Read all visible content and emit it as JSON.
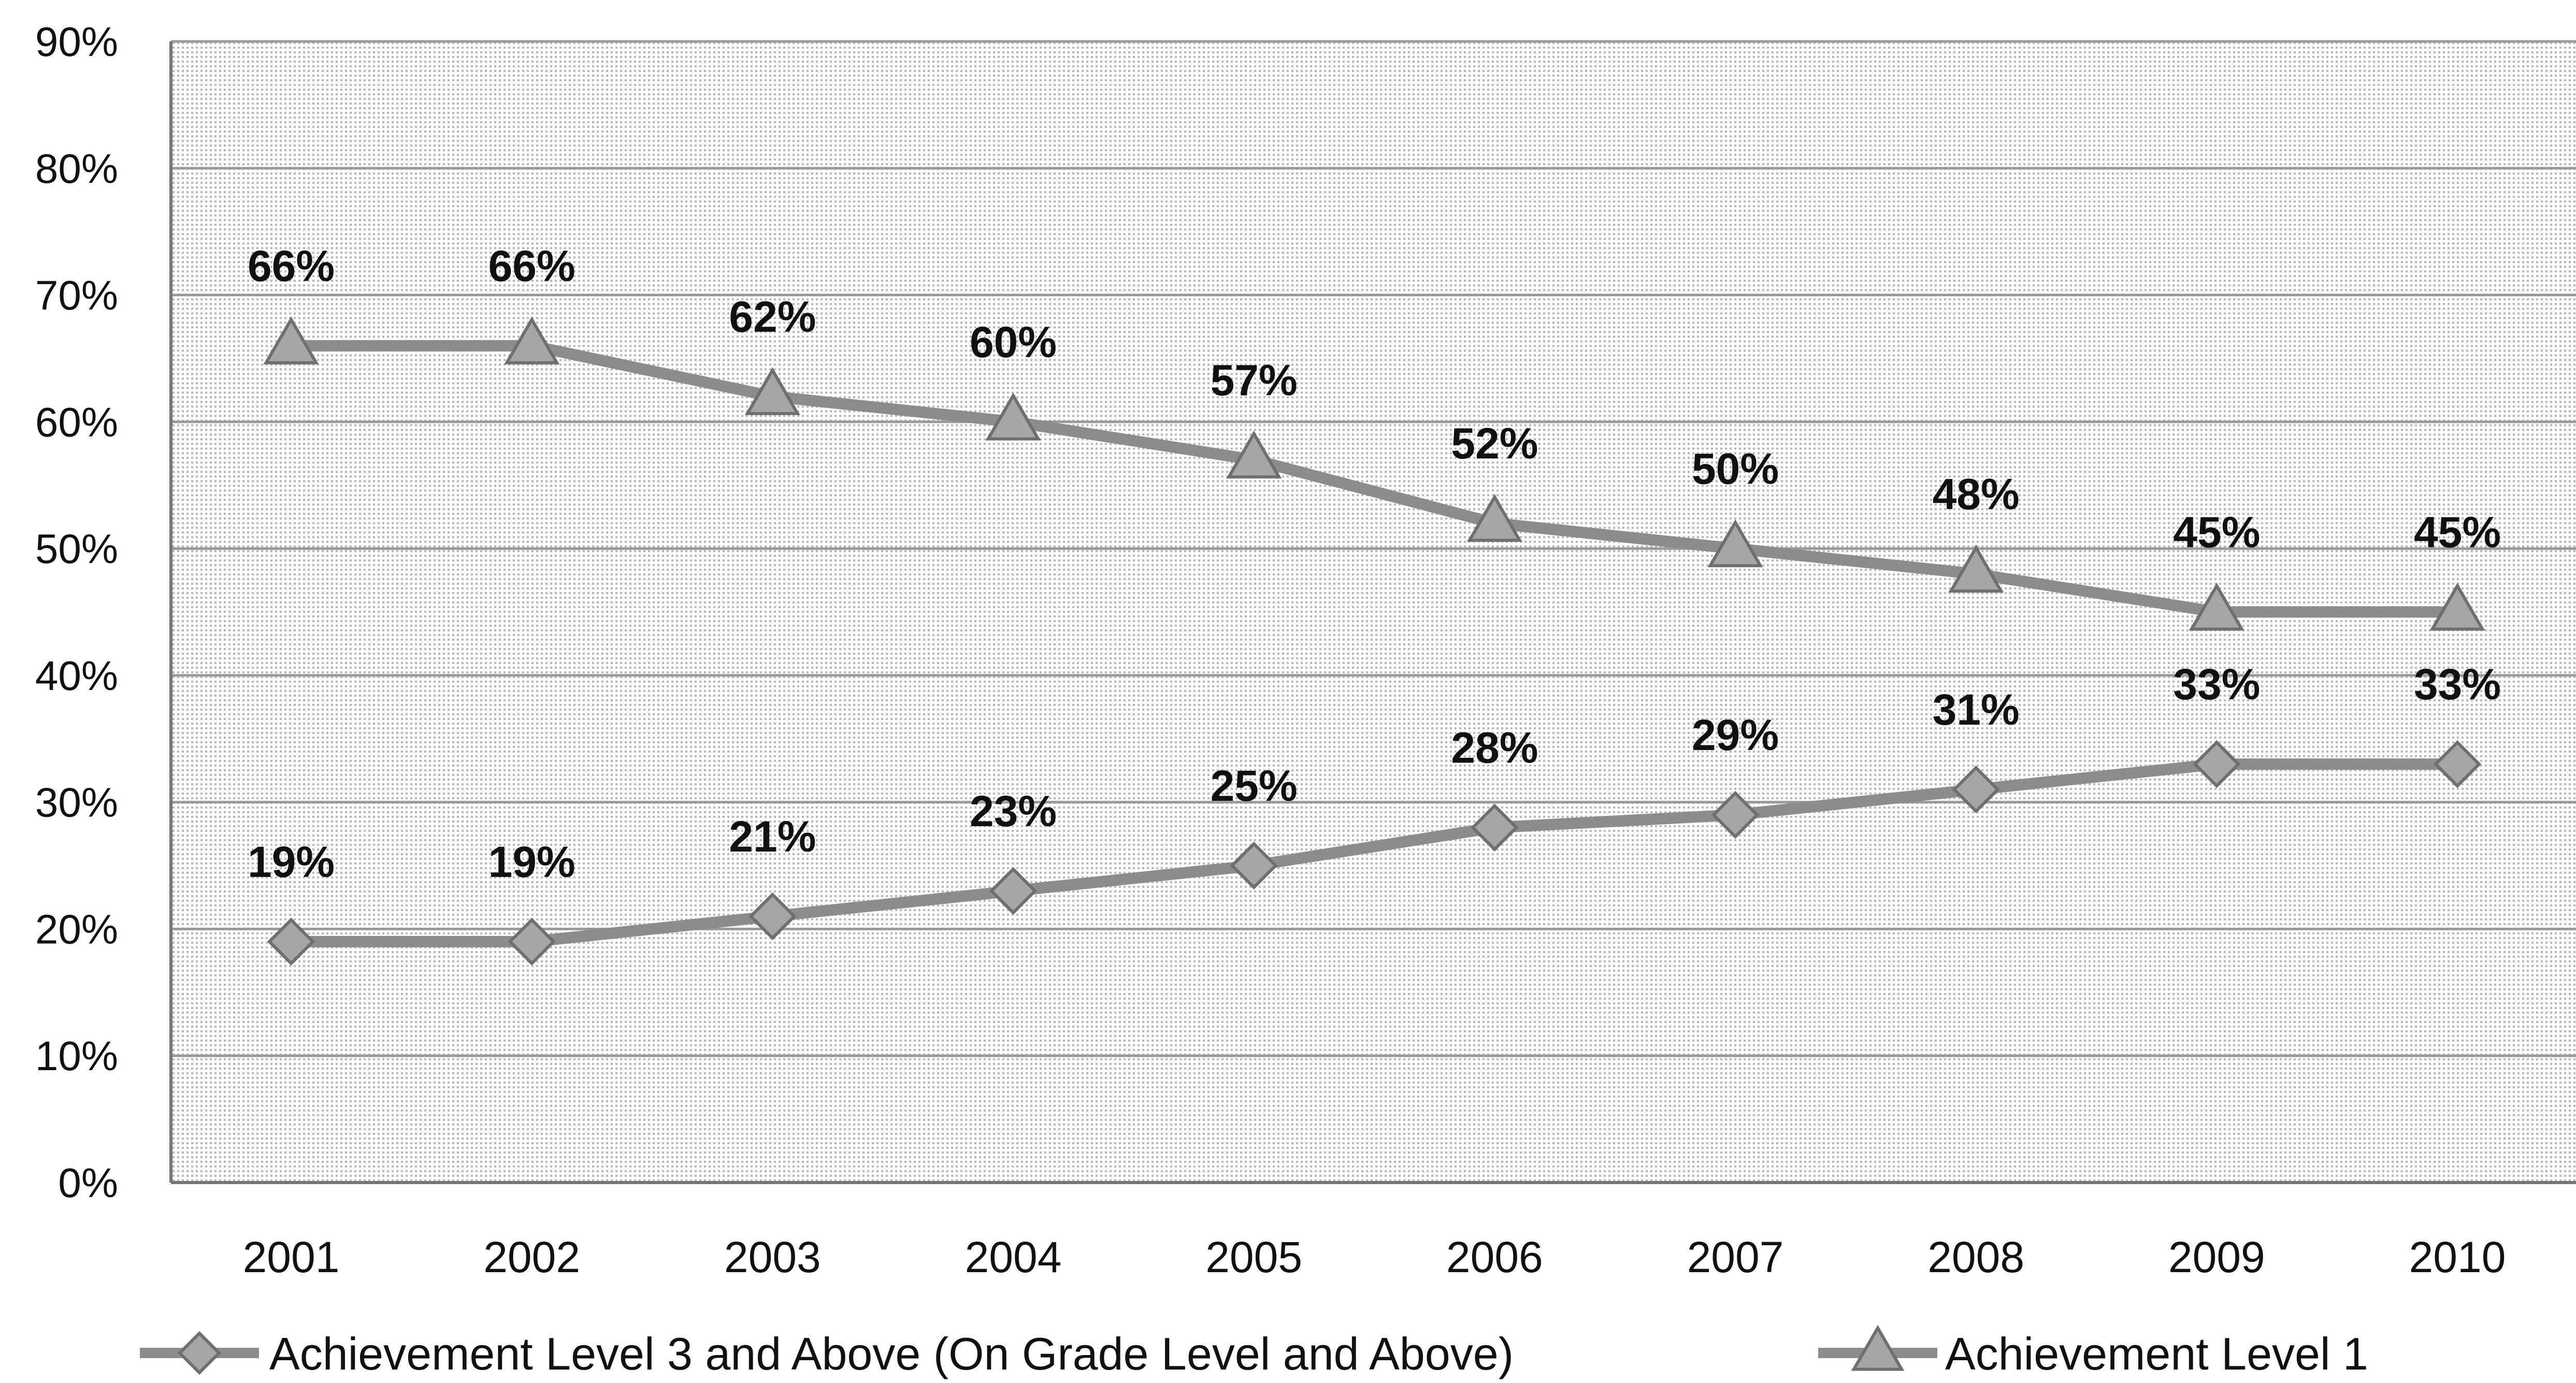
{
  "chart_data": {
    "type": "line",
    "x": [
      "2001",
      "2002",
      "2003",
      "2004",
      "2005",
      "2006",
      "2007",
      "2008",
      "2009",
      "2010"
    ],
    "ylim": [
      0,
      90
    ],
    "yticks": [
      "0%",
      "10%",
      "20%",
      "30%",
      "40%",
      "50%",
      "60%",
      "70%",
      "80%",
      "90%"
    ],
    "grid": true,
    "legend": "bottom",
    "series": [
      {
        "name": "Achievement Level 3 and Above (On Grade Level and Above)",
        "marker": "diamond",
        "values": [
          19,
          19,
          21,
          23,
          25,
          28,
          29,
          31,
          33,
          33
        ],
        "labels": [
          "19%",
          "19%",
          "21%",
          "23%",
          "25%",
          "28%",
          "29%",
          "31%",
          "33%",
          "33%"
        ]
      },
      {
        "name": "Achievement Level 1",
        "marker": "triangle",
        "values": [
          66,
          66,
          62,
          60,
          57,
          52,
          50,
          48,
          45,
          45
        ],
        "labels": [
          "66%",
          "66%",
          "62%",
          "60%",
          "57%",
          "52%",
          "50%",
          "48%",
          "45%",
          "45%"
        ]
      }
    ],
    "colors": {
      "line": "#8c8c8c",
      "grid": "#9a9a9a",
      "axis": "#777777",
      "plot_bg": "#ececec"
    }
  }
}
